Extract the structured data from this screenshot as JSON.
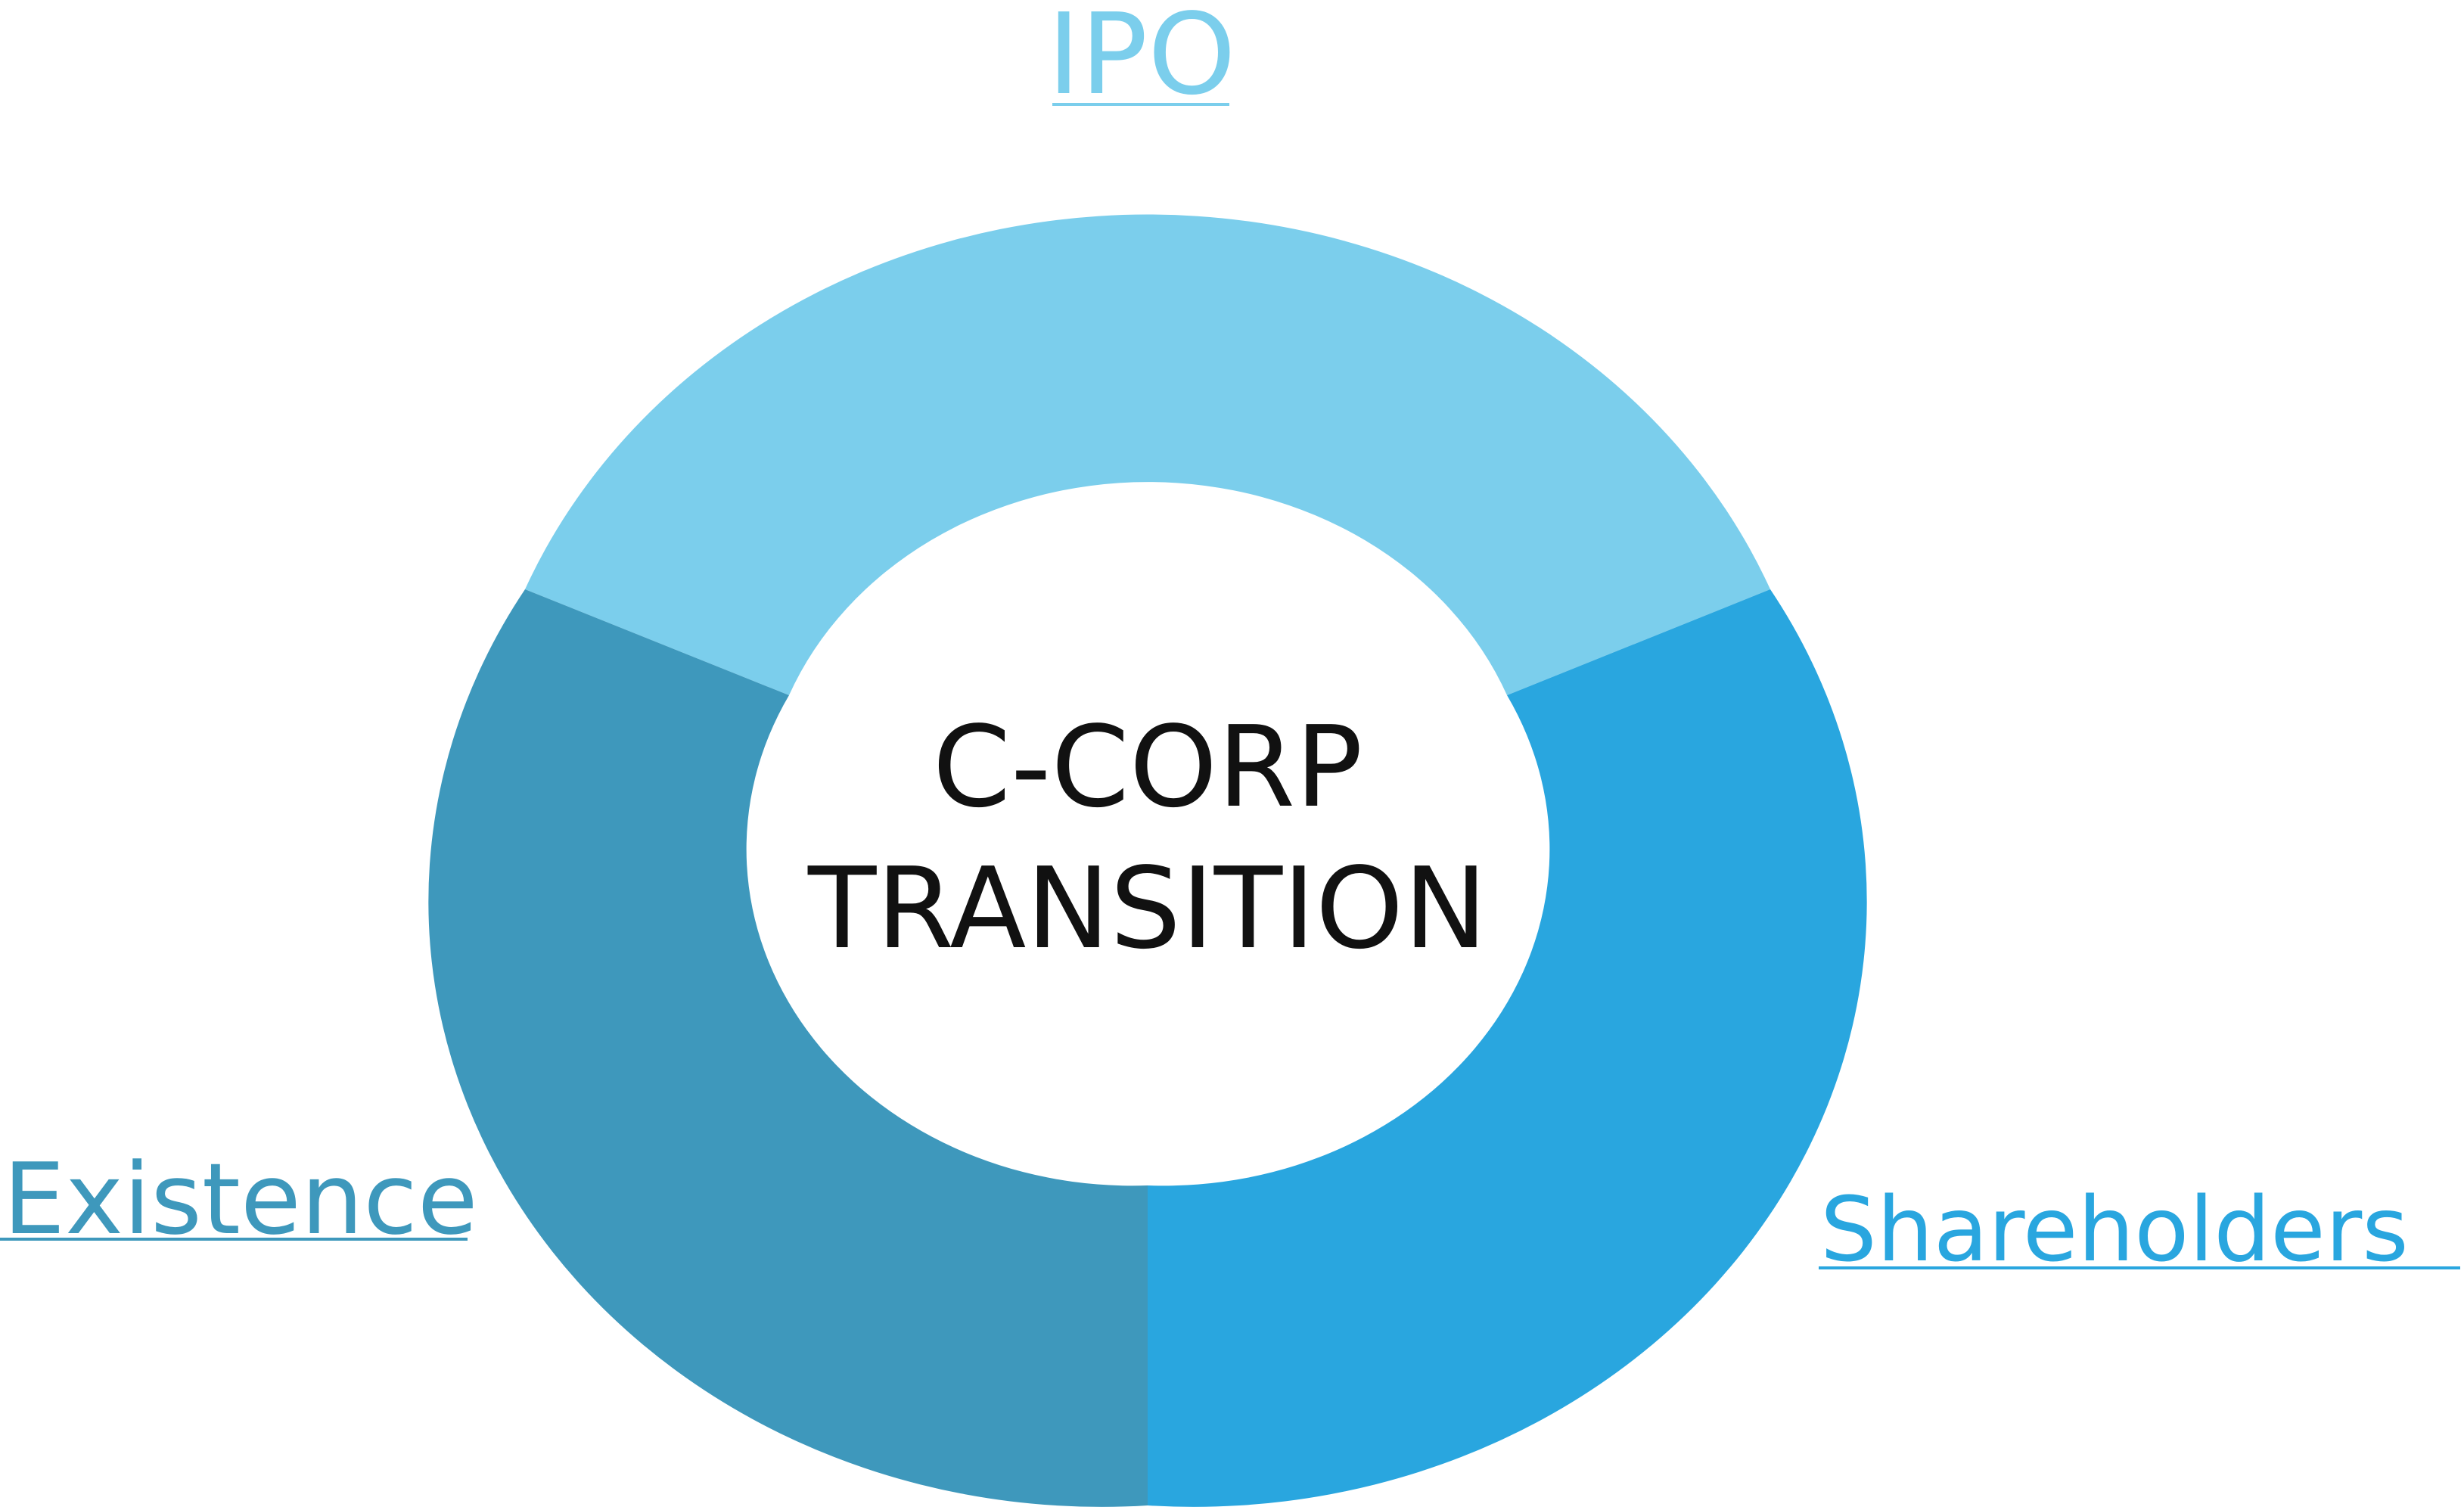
{
  "diagram": {
    "center_lines": [
      "C-CORP",
      "TRANSITION"
    ],
    "segments": [
      {
        "id": "ipo",
        "label": "IPO",
        "color": "#7BCEEC"
      },
      {
        "id": "shareholders",
        "label": "Shareholders",
        "color": "#29A6DF"
      },
      {
        "id": "existence",
        "label": "Existence",
        "color": "#3E98BC"
      }
    ],
    "text_color": "#111111",
    "hole_color": "#FFFFFF"
  }
}
